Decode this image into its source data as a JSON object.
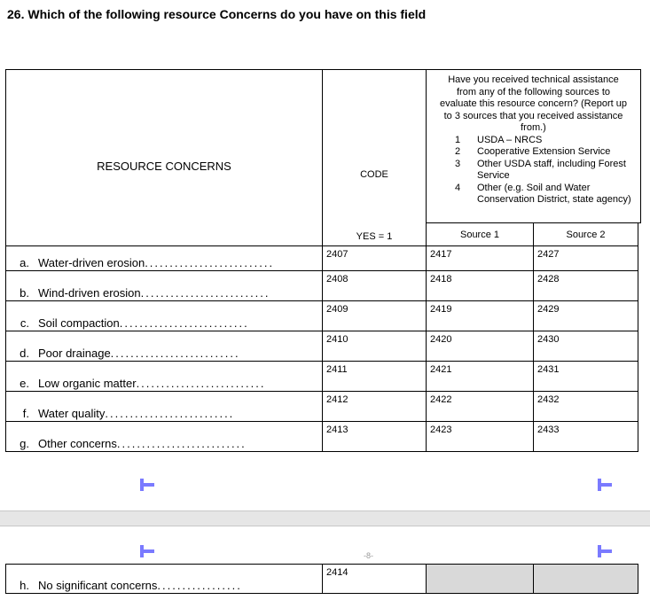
{
  "question": "26.  Which of the following resource Concerns do you have on this field",
  "headers": {
    "resource": "RESOURCE CONCERNS",
    "code": "CODE",
    "yes": "YES = 1",
    "source1": "Source 1",
    "source2": "Source 2",
    "assistance_intro": "Have you received technical assistance from any of the following sources to evaluate this resource concern?  (Report up to 3 sources that you received assistance from.)",
    "sources": [
      {
        "num": "1",
        "text": "USDA – NRCS"
      },
      {
        "num": "2",
        "text": "Cooperative Extension Service"
      },
      {
        "num": "3",
        "text": "Other USDA staff, including Forest Service"
      },
      {
        "num": "4",
        "text": "Other (e.g. Soil and Water Conservation District, state agency)"
      }
    ]
  },
  "rows": [
    {
      "letter": "a.",
      "label": "Water-driven erosion",
      "code": "2407",
      "s1": "2417",
      "s2": "2427"
    },
    {
      "letter": "b.",
      "label": "Wind-driven erosion",
      "code": "2408",
      "s1": "2418",
      "s2": "2428"
    },
    {
      "letter": "c.",
      "label": "Soil compaction",
      "code": "2409",
      "s1": "2419",
      "s2": "2429"
    },
    {
      "letter": "d.",
      "label": "Poor drainage",
      "code": "2410",
      "s1": "2420",
      "s2": "2430"
    },
    {
      "letter": "e.",
      "label": "Low organic matter",
      "code": "2411",
      "s1": "2421",
      "s2": "2431"
    },
    {
      "letter": "f.",
      "label": "Water quality",
      "code": "2412",
      "s1": "2422",
      "s2": "2432"
    },
    {
      "letter": "g.",
      "label": "Other concerns",
      "code": "2413",
      "s1": "2423",
      "s2": "2433"
    }
  ],
  "last_row": {
    "letter": "h.",
    "label": "No significant concerns",
    "code": "2414"
  },
  "page_number": "-8-",
  "colors": {
    "marker": "#7a7aff",
    "shaded": "#d9d9d9",
    "page_gap": "#e6e6e6"
  }
}
